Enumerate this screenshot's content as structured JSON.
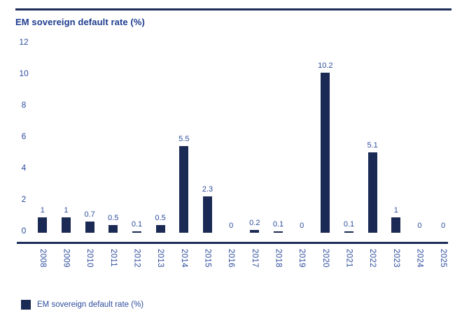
{
  "title": "EM sovereign default rate (%)",
  "legend": {
    "label": "EM sovereign default rate (%)"
  },
  "colors": {
    "bar": "#1b2a55",
    "axis_line": "#1e2d58",
    "label_text": "#2e4d9c",
    "title_text": "#1e3d8f"
  },
  "chart_data": {
    "type": "bar",
    "title": "EM sovereign default rate (%)",
    "categories": [
      "2008",
      "2009",
      "2010",
      "2011",
      "2012",
      "2013",
      "2014",
      "2015",
      "2016",
      "2017",
      "2018",
      "2019",
      "2020",
      "2021",
      "2022",
      "2023",
      "2024",
      "2025"
    ],
    "values": [
      1,
      1,
      0.7,
      0.5,
      0.1,
      0.5,
      5.5,
      2.3,
      0,
      0.2,
      0.1,
      0,
      10.2,
      0.1,
      5.1,
      1,
      0,
      0
    ],
    "value_labels": [
      "1",
      "1",
      "0.7",
      "0.5",
      "0.1",
      "0.5",
      "5.5",
      "2.3",
      "0",
      "0.2",
      "0.1",
      "0",
      "10.2",
      "0.1",
      "5.1",
      "1",
      "0",
      "0"
    ],
    "xlabel": "",
    "ylabel": "",
    "ylim": [
      0,
      12
    ],
    "yticks": [
      0,
      2,
      4,
      6,
      8,
      10,
      12
    ],
    "x_tick_rotation": 90,
    "grid": false,
    "legend_position": "bottom-left",
    "legend_entries": [
      "EM sovereign default rate (%)"
    ]
  }
}
